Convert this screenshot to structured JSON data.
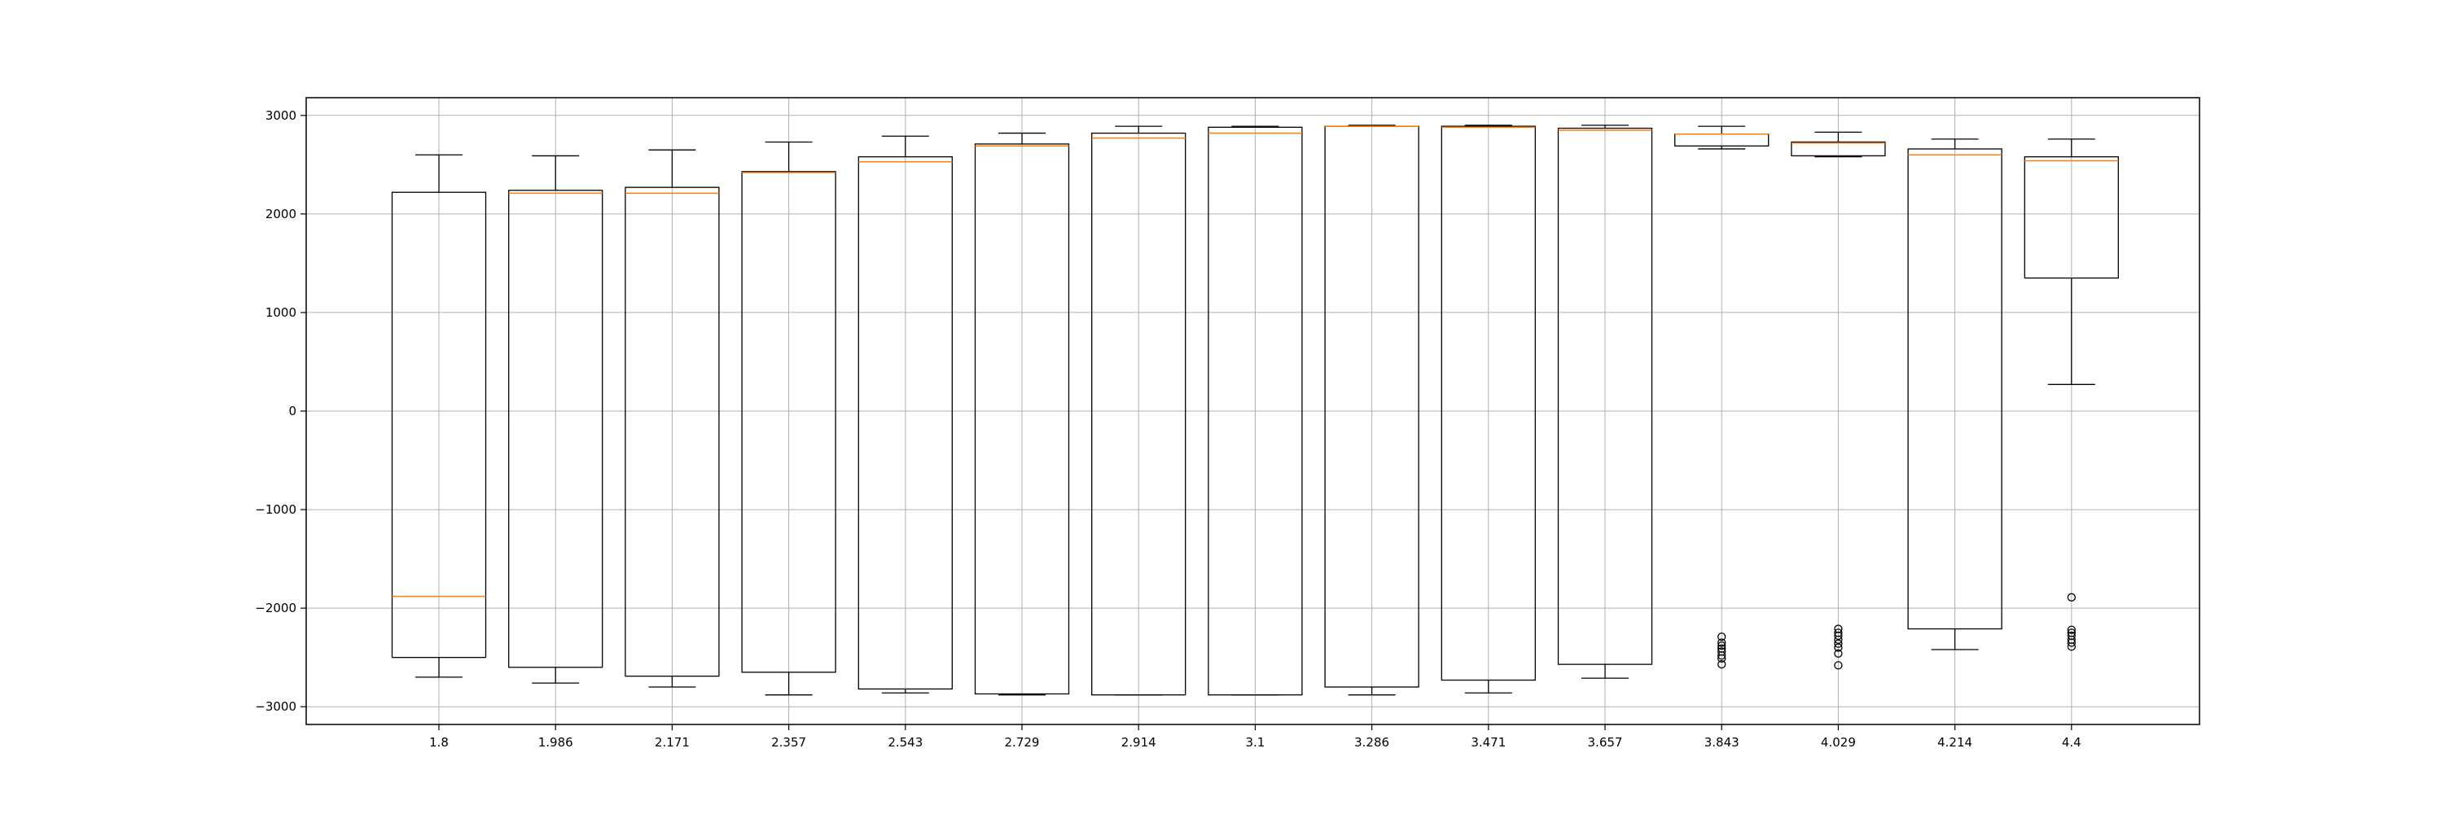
{
  "chart_data": {
    "type": "box",
    "title": "",
    "xlabel": "",
    "ylabel": "",
    "grid": true,
    "ylim": [
      -3180,
      3180
    ],
    "yticks": [
      -3000,
      -2000,
      -1000,
      0,
      1000,
      2000,
      3000
    ],
    "ytick_labels": [
      "−3000",
      "−2000",
      "−1000",
      "0",
      "1000",
      "2000",
      "3000"
    ],
    "categories": [
      "1.8",
      "1.986",
      "2.171",
      "2.357",
      "2.543",
      "2.729",
      "2.914",
      "3.1",
      "3.286",
      "3.471",
      "3.657",
      "3.843",
      "4.029",
      "4.214",
      "4.4"
    ],
    "boxes": [
      {
        "whislo": -2700,
        "q1": -2500,
        "med": -1880,
        "q3": 2220,
        "whishi": 2600,
        "fliers": []
      },
      {
        "whislo": -2760,
        "q1": -2600,
        "med": 2210,
        "q3": 2240,
        "whishi": 2590,
        "fliers": []
      },
      {
        "whislo": -2800,
        "q1": -2690,
        "med": 2210,
        "q3": 2270,
        "whishi": 2650,
        "fliers": []
      },
      {
        "whislo": -2880,
        "q1": -2650,
        "med": 2420,
        "q3": 2430,
        "whishi": 2730,
        "fliers": []
      },
      {
        "whislo": -2860,
        "q1": -2820,
        "med": 2530,
        "q3": 2580,
        "whishi": 2790,
        "fliers": []
      },
      {
        "whislo": -2880,
        "q1": -2870,
        "med": 2690,
        "q3": 2710,
        "whishi": 2820,
        "fliers": []
      },
      {
        "whislo": -2880,
        "q1": -2880,
        "med": 2770,
        "q3": 2820,
        "whishi": 2890,
        "fliers": []
      },
      {
        "whislo": -2880,
        "q1": -2880,
        "med": 2820,
        "q3": 2880,
        "whishi": 2890,
        "fliers": []
      },
      {
        "whislo": -2880,
        "q1": -2800,
        "med": 2890,
        "q3": 2890,
        "whishi": 2900,
        "fliers": []
      },
      {
        "whislo": -2860,
        "q1": -2730,
        "med": 2880,
        "q3": 2890,
        "whishi": 2900,
        "fliers": []
      },
      {
        "whislo": -2710,
        "q1": -2570,
        "med": 2850,
        "q3": 2870,
        "whishi": 2900,
        "fliers": []
      },
      {
        "whislo": 2660,
        "q1": 2690,
        "med": 2810,
        "q3": 2810,
        "whishi": 2890,
        "fliers": [
          -2290,
          -2350,
          -2380,
          -2410,
          -2440,
          -2480,
          -2510,
          -2570
        ]
      },
      {
        "whislo": 2580,
        "q1": 2590,
        "med": 2720,
        "q3": 2730,
        "whishi": 2830,
        "fliers": [
          -2210,
          -2250,
          -2280,
          -2320,
          -2360,
          -2400,
          -2460,
          -2580
        ]
      },
      {
        "whislo": -2420,
        "q1": -2210,
        "med": 2600,
        "q3": 2660,
        "whishi": 2760,
        "fliers": []
      },
      {
        "whislo": 270,
        "q1": 1350,
        "med": 2540,
        "q3": 2580,
        "whishi": 2760,
        "fliers": [
          -1890,
          -2220,
          -2250,
          -2280,
          -2320,
          -2350,
          -2390
        ]
      }
    ],
    "colors": {
      "box": "#000000",
      "median": "#ff7f0e",
      "grid": "#b0b0b0",
      "flier": "#000000"
    }
  }
}
